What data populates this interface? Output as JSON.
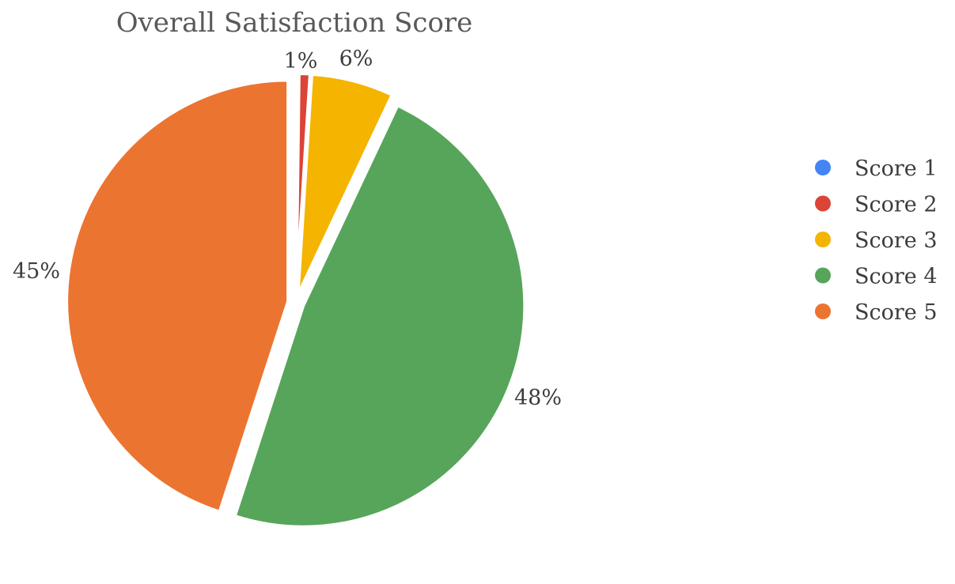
{
  "chart_data": {
    "type": "pie",
    "title": "Overall Satisfaction Score",
    "legend_position": "right",
    "slices": [
      {
        "name": "Score 1",
        "value": 0.2,
        "label": "",
        "color": "#4285f4"
      },
      {
        "name": "Score 2",
        "value": 0.8,
        "label": "1%",
        "color": "#db4437"
      },
      {
        "name": "Score 3",
        "value": 6,
        "label": "6%",
        "color": "#f4b400"
      },
      {
        "name": "Score 4",
        "value": 48,
        "label": "48%",
        "color": "#57a55a"
      },
      {
        "name": "Score 5",
        "value": 45,
        "label": "45%",
        "color": "#ec7431"
      }
    ]
  }
}
